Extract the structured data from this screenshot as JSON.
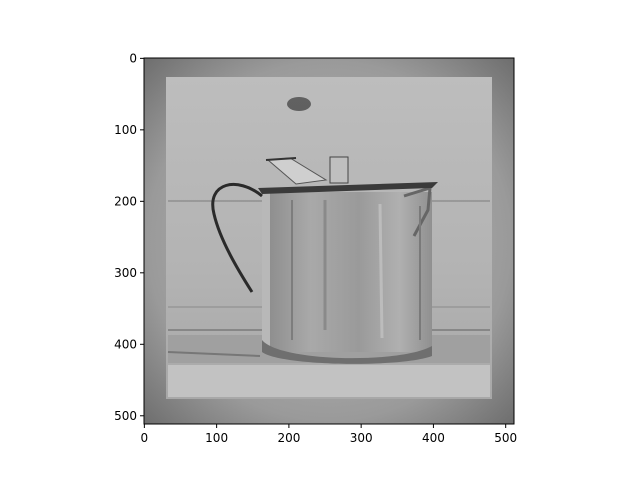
{
  "image": {
    "subject": "grayscale-teapot-image",
    "colormap": "gray"
  },
  "axes": {
    "x_ticks": [
      "0",
      "100",
      "200",
      "300",
      "400",
      "500"
    ],
    "y_ticks": [
      "0",
      "100",
      "200",
      "300",
      "400",
      "500"
    ],
    "xlim": [
      -0.5,
      511.5
    ],
    "ylim": [
      511.5,
      -0.5
    ]
  }
}
